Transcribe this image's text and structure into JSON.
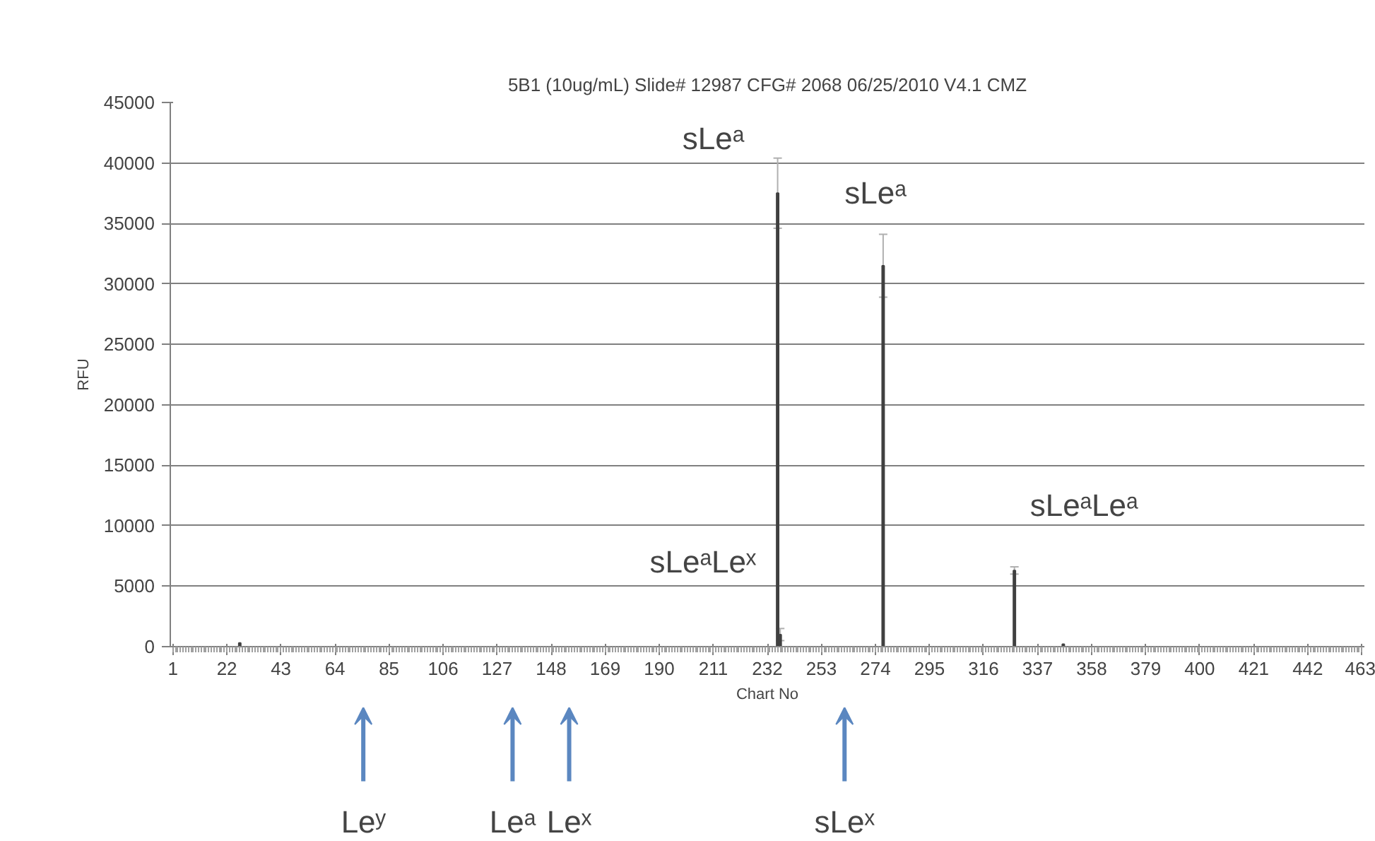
{
  "chart_data": {
    "type": "bar",
    "title": "5B1 (10ug/mL) Slide# 12987 CFG# 2068 06/25/2010 V4.1 CMZ",
    "xlabel": "Chart No",
    "ylabel": "RFU",
    "x": [
      27,
      236,
      237,
      277,
      328,
      347
    ],
    "values": [
      300,
      37500,
      1000,
      31500,
      6300,
      200
    ],
    "errors": [
      null,
      2900,
      500,
      2600,
      300,
      null
    ],
    "color": "#404040",
    "xlim": [
      0,
      464
    ],
    "xticks": [
      1,
      22,
      43,
      64,
      85,
      106,
      127,
      148,
      169,
      190,
      211,
      232,
      253,
      274,
      295,
      316,
      337,
      358,
      379,
      400,
      421,
      442,
      463
    ],
    "ylim": [
      0,
      45000
    ],
    "yticks": [
      0,
      5000,
      10000,
      15000,
      20000,
      25000,
      30000,
      35000,
      40000,
      45000
    ],
    "grid": "y",
    "annotations": [
      "sLeᵃ",
      "sLeᵃ",
      "sLeᵃLeˣ",
      "sLeᵃLeᵃ",
      "Leʸ",
      "Leᵃ",
      "Leˣ",
      "sLeˣ"
    ]
  }
}
